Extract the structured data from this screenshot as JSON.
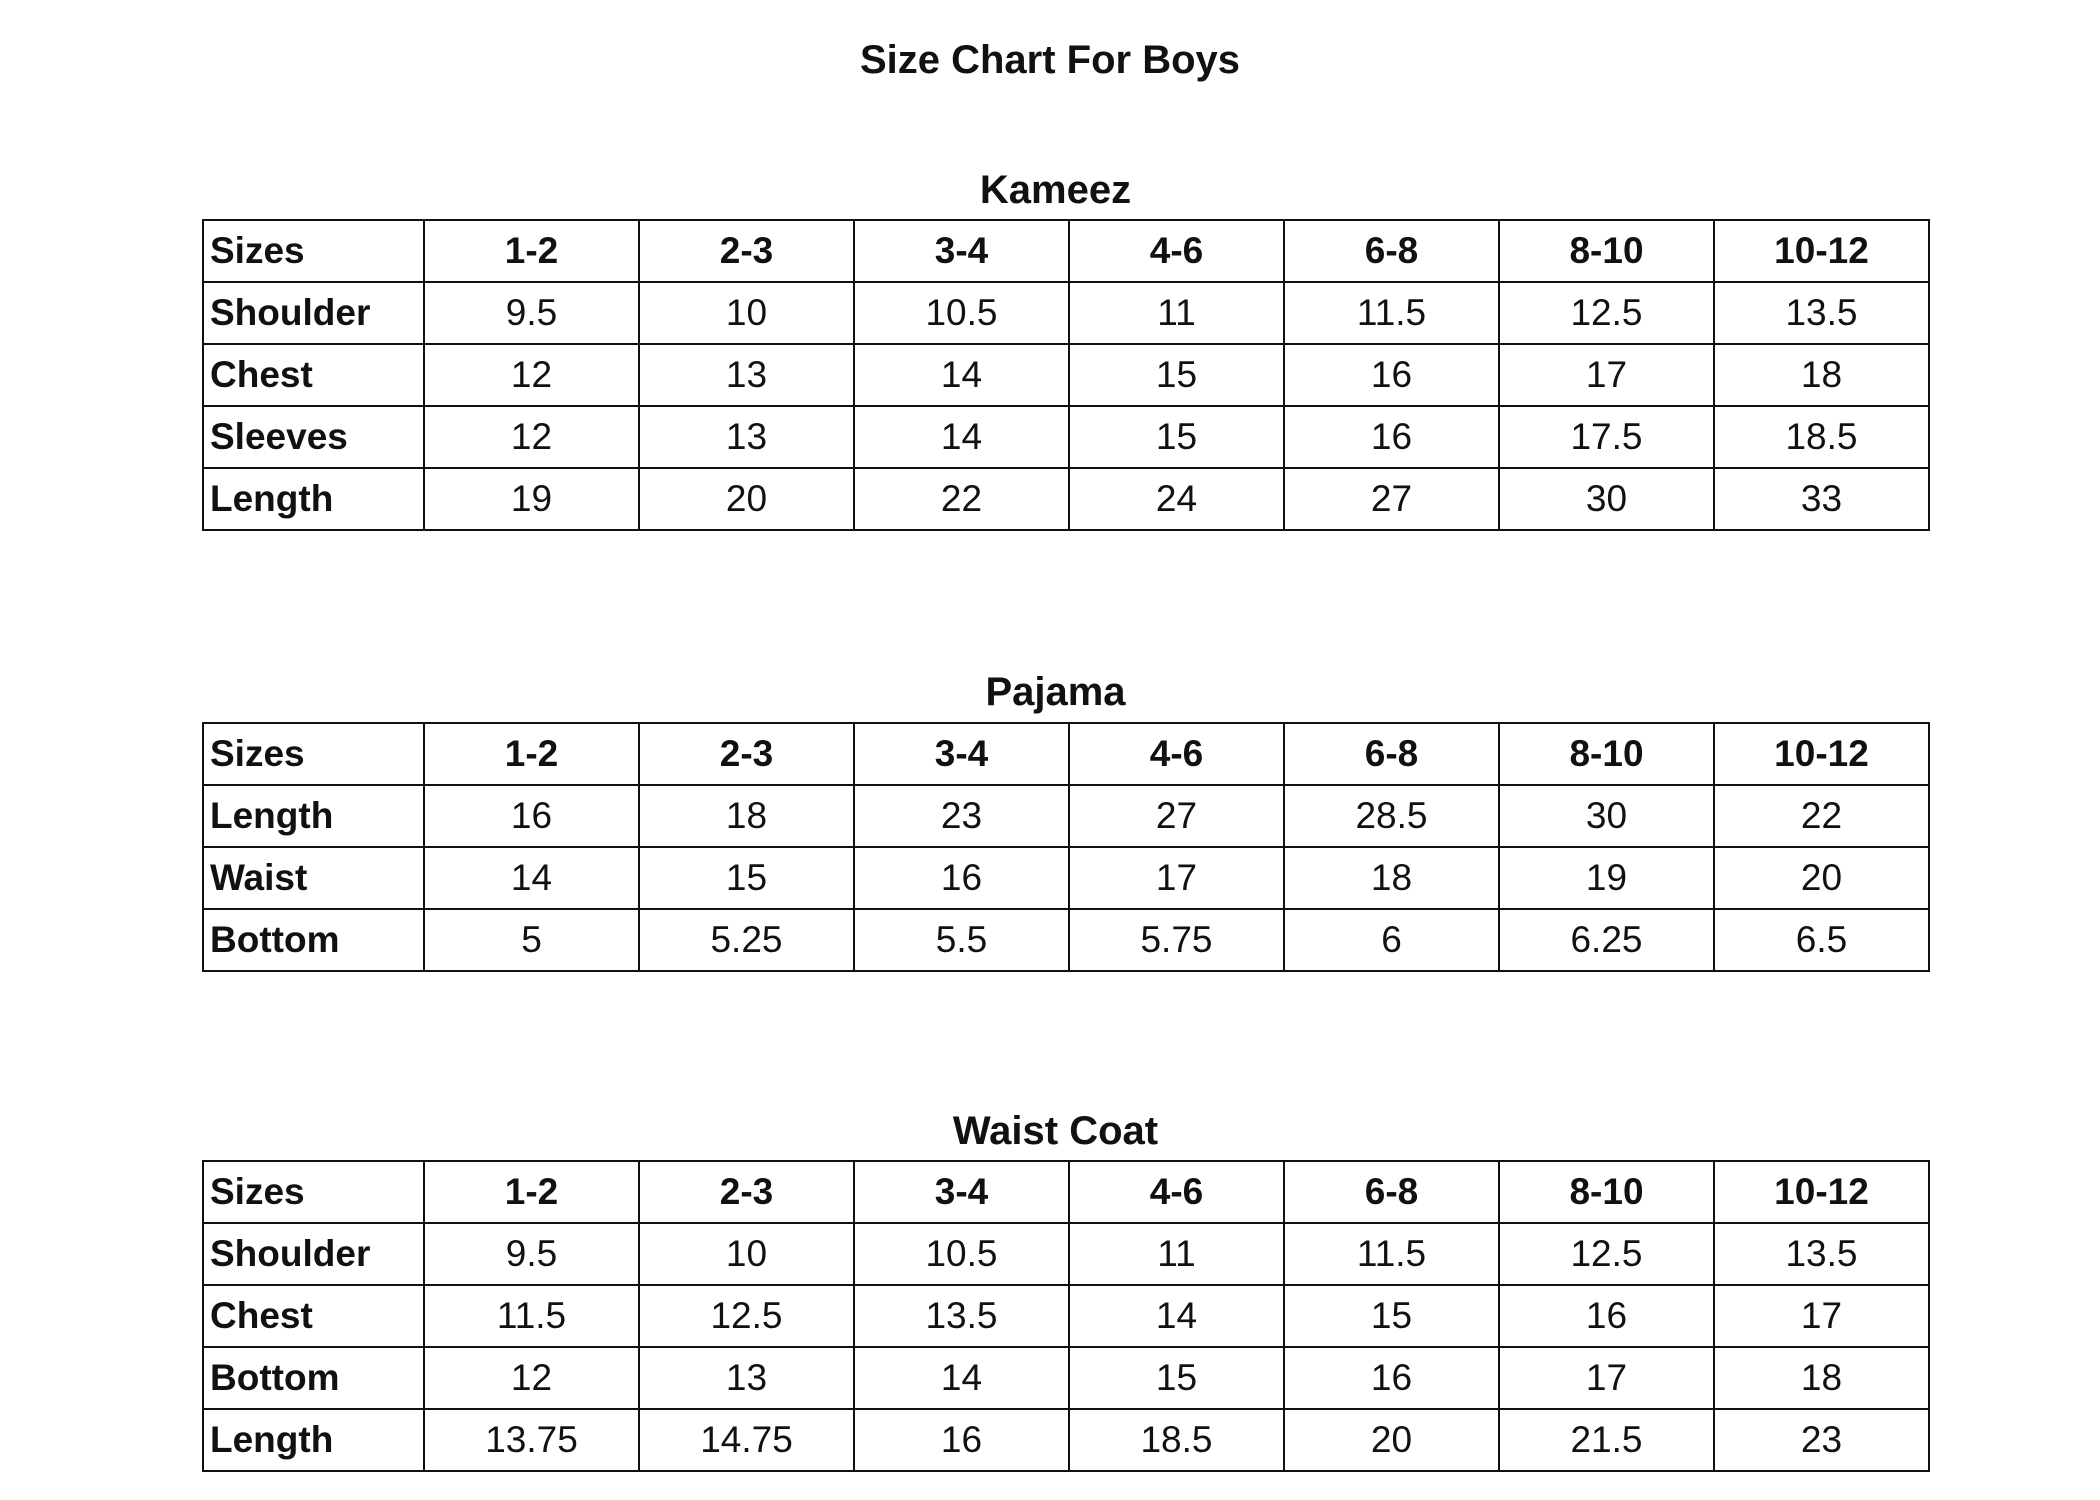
{
  "title": "Size Chart For Boys",
  "tables": [
    {
      "name": "Kameez",
      "header_label": "Sizes",
      "sizes": [
        "1-2",
        "2-3",
        "3-4",
        "4-6",
        "6-8",
        "8-10",
        "10-12"
      ],
      "rows": [
        {
          "label": "Shoulder",
          "values": [
            "9.5",
            "10",
            "10.5",
            "11",
            "11.5",
            "12.5",
            "13.5"
          ]
        },
        {
          "label": "Chest",
          "values": [
            "12",
            "13",
            "14",
            "15",
            "16",
            "17",
            "18"
          ]
        },
        {
          "label": "Sleeves",
          "values": [
            "12",
            "13",
            "14",
            "15",
            "16",
            "17.5",
            "18.5"
          ]
        },
        {
          "label": "Length",
          "values": [
            "19",
            "20",
            "22",
            "24",
            "27",
            "30",
            "33"
          ]
        }
      ]
    },
    {
      "name": "Pajama",
      "header_label": "Sizes",
      "sizes": [
        "1-2",
        "2-3",
        "3-4",
        "4-6",
        "6-8",
        "8-10",
        "10-12"
      ],
      "rows": [
        {
          "label": "Length",
          "values": [
            "16",
            "18",
            "23",
            "27",
            "28.5",
            "30",
            "22"
          ]
        },
        {
          "label": "Waist",
          "values": [
            "14",
            "15",
            "16",
            "17",
            "18",
            "19",
            "20"
          ]
        },
        {
          "label": "Bottom",
          "values": [
            "5",
            "5.25",
            "5.5",
            "5.75",
            "6",
            "6.25",
            "6.5"
          ]
        }
      ]
    },
    {
      "name": "Waist Coat",
      "header_label": "Sizes",
      "sizes": [
        "1-2",
        "2-3",
        "3-4",
        "4-6",
        "6-8",
        "8-10",
        "10-12"
      ],
      "rows": [
        {
          "label": "Shoulder",
          "values": [
            "9.5",
            "10",
            "10.5",
            "11",
            "11.5",
            "12.5",
            "13.5"
          ]
        },
        {
          "label": "Chest",
          "values": [
            "11.5",
            "12.5",
            "13.5",
            "14",
            "15",
            "16",
            "17"
          ]
        },
        {
          "label": "Bottom",
          "values": [
            "12",
            "13",
            "14",
            "15",
            "16",
            "17",
            "18"
          ]
        },
        {
          "label": "Length",
          "values": [
            "13.75",
            "14.75",
            "16",
            "18.5",
            "20",
            "21.5",
            "23"
          ]
        }
      ]
    }
  ]
}
